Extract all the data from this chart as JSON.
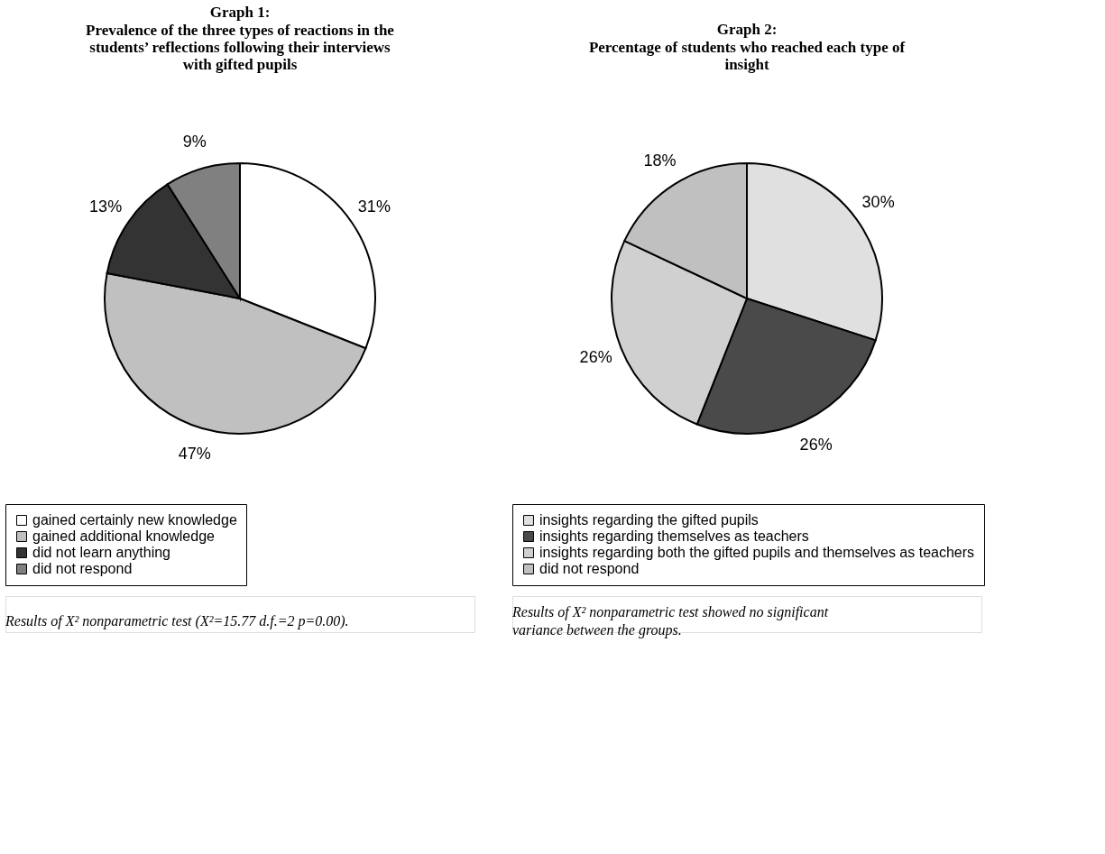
{
  "chart_data": [
    {
      "type": "pie",
      "title": "Graph 1:",
      "subtitle": "Prevalence of the three types of reactions in the students’ reflections following their interviews with gifted pupils",
      "categories": [
        "gained certainly new knowledge",
        "gained additional knowledge",
        "did not learn anything",
        "did not respond"
      ],
      "values": [
        31,
        47,
        13,
        9
      ],
      "value_labels": [
        "31%",
        "47%",
        "13%",
        "9%"
      ],
      "colors": [
        "#ffffff",
        "#c0c0c0",
        "#333333",
        "#808080"
      ],
      "legend": "bottom",
      "annotations": [
        "Results of X² nonparametric test (X²=15.77 d.f.=2 p=0.00)."
      ]
    },
    {
      "type": "pie",
      "title": "Graph 2:",
      "subtitle": "Percentage of students who reached each type of insight",
      "categories": [
        "insights regarding the gifted pupils",
        "insights regarding themselves as teachers",
        "insights regarding both the gifted pupils and themselves as teachers",
        "did not respond"
      ],
      "values": [
        30,
        26,
        26,
        18
      ],
      "value_labels": [
        "30%",
        "26%",
        "26%",
        "18%"
      ],
      "colors": [
        "#e0e0e0",
        "#4a4a4a",
        "#d0d0d0",
        "#c0c0c0"
      ],
      "legend": "bottom",
      "annotations": [
        "Results of X² nonparametric test showed no significant variance between the groups."
      ]
    }
  ]
}
